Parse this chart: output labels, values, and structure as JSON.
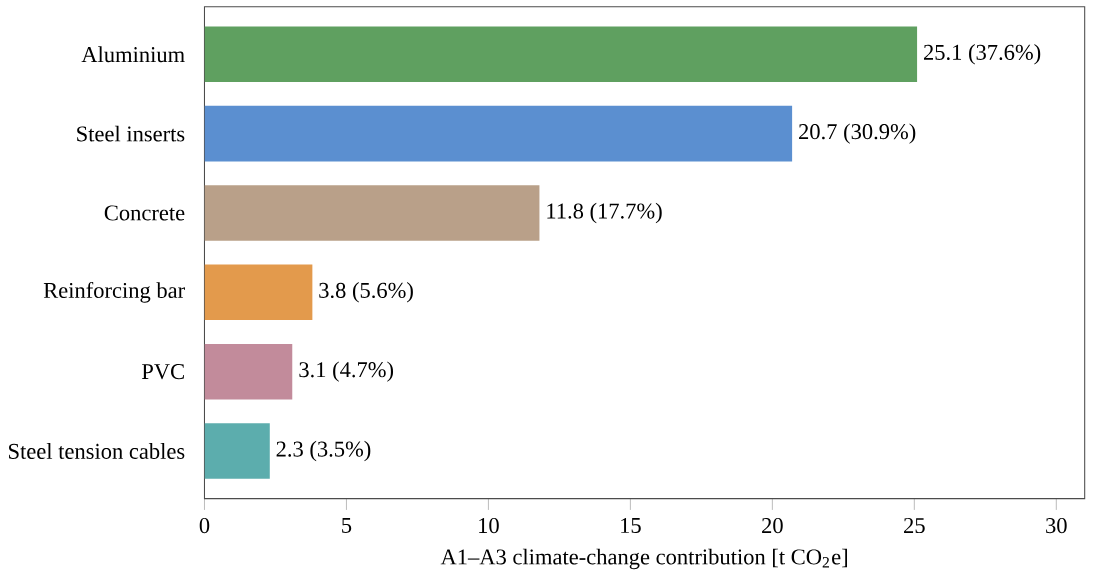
{
  "chart_data": {
    "type": "bar",
    "orientation": "horizontal",
    "categories": [
      "Aluminium",
      "Steel inserts",
      "Concrete",
      "Reinforcing bar",
      "PVC",
      "Steel tension cables"
    ],
    "values": [
      25.1,
      20.7,
      11.8,
      3.8,
      3.1,
      2.3
    ],
    "colors": [
      "#5fa060",
      "#5b8fd0",
      "#b9a089",
      "#e39a4c",
      "#c28b9b",
      "#5cadad"
    ],
    "value_labels": [
      "25.1  (37.6%)",
      "20.7  (30.9%)",
      "11.8  (17.7%)",
      "3.8  (5.6%)",
      "3.1  (4.7%)",
      "2.3  (3.5%)"
    ],
    "xlabel": "A1–A3 climate-change contribution [t CO$_{2}$e]",
    "xlim": [
      0,
      31
    ],
    "xticks": [
      0,
      5,
      10,
      15,
      20,
      25,
      30
    ]
  }
}
